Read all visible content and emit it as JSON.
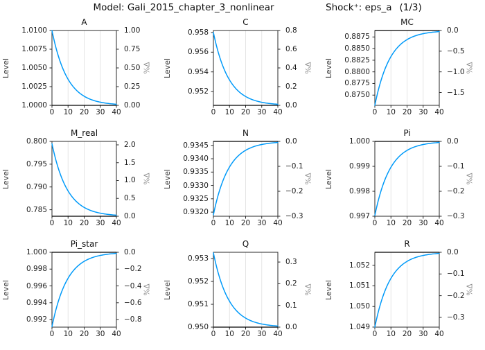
{
  "header": {
    "model_label": "Model: Gali_2015_chapter_3_nonlinear",
    "shock_label": "Shock⁺: eps_a",
    "shock_count": "(1/3)"
  },
  "axis": {
    "level_label": "Level",
    "pct_label": "%Δ"
  },
  "style": {
    "line_color": "#009af9",
    "frame_color": "#2a2a2a",
    "grid_color": "#e4e4e4",
    "ss_line_color": "#000000"
  },
  "chart_data": [
    {
      "type": "line",
      "title": "A",
      "xlabel": "",
      "ylabel_left": "Level",
      "ylabel_right": "%Δ",
      "steady_state": 1.0,
      "start_level": 1.01,
      "decay": 0.9,
      "x_range": [
        0,
        40
      ],
      "grid_x": [
        10,
        20,
        30
      ],
      "pct_range": [
        0,
        1.0
      ],
      "x_ticks": [
        {
          "label": "0",
          "value": 0
        },
        {
          "label": "10",
          "value": 10
        },
        {
          "label": "20",
          "value": 20
        },
        {
          "label": "30",
          "value": 30
        },
        {
          "label": "40",
          "value": 40
        }
      ],
      "left_ticks": [
        {
          "label": "1.0000",
          "value": 1.0
        },
        {
          "label": "1.0025",
          "value": 1.0025
        },
        {
          "label": "1.0050",
          "value": 1.005
        },
        {
          "label": "1.0075",
          "value": 1.0075
        },
        {
          "label": "1.0100",
          "value": 1.01
        }
      ],
      "right_ticks": [
        {
          "label": "0.00",
          "value": 0
        },
        {
          "label": "0.25",
          "value": 0.25
        },
        {
          "label": "0.50",
          "value": 0.5
        },
        {
          "label": "0.75",
          "value": 0.75
        },
        {
          "label": "1.00",
          "value": 1.0
        }
      ]
    },
    {
      "type": "line",
      "title": "C",
      "xlabel": "",
      "ylabel_left": "Level",
      "ylabel_right": "%Δ",
      "steady_state": 0.9506,
      "start_level": 0.958,
      "decay": 0.9,
      "x_range": [
        0,
        40
      ],
      "grid_x": [
        10,
        20,
        30
      ],
      "pct_range": [
        0,
        0.8
      ],
      "x_ticks": [
        {
          "label": "0",
          "value": 0
        },
        {
          "label": "10",
          "value": 10
        },
        {
          "label": "20",
          "value": 20
        },
        {
          "label": "30",
          "value": 30
        },
        {
          "label": "40",
          "value": 40
        }
      ],
      "left_ticks": [
        {
          "label": "0.952",
          "value": 0.952
        },
        {
          "label": "0.954",
          "value": 0.954
        },
        {
          "label": "0.956",
          "value": 0.956
        },
        {
          "label": "0.958",
          "value": 0.958
        }
      ],
      "right_ticks": [
        {
          "label": "0.0",
          "value": 0
        },
        {
          "label": "0.2",
          "value": 0.2
        },
        {
          "label": "0.4",
          "value": 0.4
        },
        {
          "label": "0.6",
          "value": 0.6
        },
        {
          "label": "0.8",
          "value": 0.8
        }
      ]
    },
    {
      "type": "line",
      "title": "MC",
      "xlabel": "",
      "ylabel_left": "Level",
      "ylabel_right": "%Δ",
      "steady_state": 0.88889,
      "start_level": 0.8728,
      "decay": 0.9,
      "x_range": [
        0,
        40
      ],
      "grid_x": [
        10,
        20,
        30
      ],
      "pct_range": [
        -1.81,
        0
      ],
      "x_ticks": [
        {
          "label": "0",
          "value": 0
        },
        {
          "label": "10",
          "value": 10
        },
        {
          "label": "20",
          "value": 20
        },
        {
          "label": "30",
          "value": 30
        },
        {
          "label": "40",
          "value": 40
        }
      ],
      "left_ticks": [
        {
          "label": "0.8750",
          "value": 0.875
        },
        {
          "label": "0.8775",
          "value": 0.8775
        },
        {
          "label": "0.8800",
          "value": 0.88
        },
        {
          "label": "0.8825",
          "value": 0.8825
        },
        {
          "label": "0.8850",
          "value": 0.885
        },
        {
          "label": "0.8875",
          "value": 0.8875
        }
      ],
      "right_ticks": [
        {
          "label": "0.0",
          "value": 0
        },
        {
          "label": "−0.5",
          "value": -0.5
        },
        {
          "label": "−1.0",
          "value": -1.0
        },
        {
          "label": "−1.5",
          "value": -1.5
        }
      ]
    },
    {
      "type": "line",
      "title": "M_real",
      "xlabel": "",
      "ylabel_left": "Level",
      "ylabel_right": "%Δ",
      "steady_state": 0.78357,
      "start_level": 0.7995,
      "decay": 0.9,
      "x_range": [
        0,
        40
      ],
      "grid_x": [
        10,
        20,
        30
      ],
      "pct_range": [
        0,
        2.097
      ],
      "x_ticks": [
        {
          "label": "0",
          "value": 0
        },
        {
          "label": "10",
          "value": 10
        },
        {
          "label": "20",
          "value": 20
        },
        {
          "label": "30",
          "value": 30
        },
        {
          "label": "40",
          "value": 40
        }
      ],
      "left_ticks": [
        {
          "label": "0.785",
          "value": 0.785
        },
        {
          "label": "0.790",
          "value": 0.79
        },
        {
          "label": "0.795",
          "value": 0.795
        },
        {
          "label": "0.800",
          "value": 0.8
        }
      ],
      "right_ticks": [
        {
          "label": "0.0",
          "value": 0
        },
        {
          "label": "0.5",
          "value": 0.5
        },
        {
          "label": "1.0",
          "value": 1.0
        },
        {
          "label": "1.5",
          "value": 1.5
        },
        {
          "label": "2.0",
          "value": 2.0
        }
      ]
    },
    {
      "type": "line",
      "title": "N",
      "xlabel": "",
      "ylabel_left": "Level",
      "ylabel_right": "%Δ",
      "steady_state": 0.93465,
      "start_level": 0.9319,
      "decay": 0.9,
      "x_range": [
        0,
        40
      ],
      "grid_x": [
        10,
        20,
        30
      ],
      "pct_range": [
        -0.3,
        0
      ],
      "x_ticks": [
        {
          "label": "0",
          "value": 0
        },
        {
          "label": "10",
          "value": 10
        },
        {
          "label": "20",
          "value": 20
        },
        {
          "label": "30",
          "value": 30
        },
        {
          "label": "40",
          "value": 40
        }
      ],
      "left_ticks": [
        {
          "label": "0.9320",
          "value": 0.932
        },
        {
          "label": "0.9325",
          "value": 0.9325
        },
        {
          "label": "0.9330",
          "value": 0.933
        },
        {
          "label": "0.9335",
          "value": 0.9335
        },
        {
          "label": "0.9340",
          "value": 0.934
        },
        {
          "label": "0.9345",
          "value": 0.9345
        }
      ],
      "right_ticks": [
        {
          "label": "0.0",
          "value": 0
        },
        {
          "label": "−0.1",
          "value": -0.1
        },
        {
          "label": "−0.2",
          "value": -0.2
        },
        {
          "label": "−0.3",
          "value": -0.3
        }
      ]
    },
    {
      "type": "line",
      "title": "Pi",
      "xlabel": "",
      "ylabel_left": "Level",
      "ylabel_right": "%Δ",
      "steady_state": 1.0,
      "start_level": 0.99703,
      "decay": 0.9,
      "x_range": [
        0,
        40
      ],
      "grid_x": [
        10,
        20,
        30
      ],
      "pct_range": [
        -0.3,
        0
      ],
      "x_ticks": [
        {
          "label": "0",
          "value": 0
        },
        {
          "label": "10",
          "value": 10
        },
        {
          "label": "20",
          "value": 20
        },
        {
          "label": "30",
          "value": 30
        },
        {
          "label": "40",
          "value": 40
        }
      ],
      "left_ticks": [
        {
          "label": "0.997",
          "value": 0.997
        },
        {
          "label": "0.998",
          "value": 0.998
        },
        {
          "label": "0.999",
          "value": 0.999
        },
        {
          "label": "1.000",
          "value": 1.0
        }
      ],
      "right_ticks": [
        {
          "label": "0.0",
          "value": 0
        },
        {
          "label": "−0.1",
          "value": -0.1
        },
        {
          "label": "−0.2",
          "value": -0.2
        },
        {
          "label": "−0.3",
          "value": -0.3
        }
      ]
    },
    {
      "type": "line",
      "title": "Pi_star",
      "xlabel": "",
      "ylabel_left": "Level",
      "ylabel_right": "%Δ",
      "steady_state": 1.0,
      "start_level": 0.99115,
      "decay": 0.9,
      "x_range": [
        0,
        40
      ],
      "grid_x": [
        10,
        20,
        30
      ],
      "pct_range": [
        -0.89,
        0
      ],
      "x_ticks": [
        {
          "label": "0",
          "value": 0
        },
        {
          "label": "10",
          "value": 10
        },
        {
          "label": "20",
          "value": 20
        },
        {
          "label": "30",
          "value": 30
        },
        {
          "label": "40",
          "value": 40
        }
      ],
      "left_ticks": [
        {
          "label": "0.992",
          "value": 0.992
        },
        {
          "label": "0.994",
          "value": 0.994
        },
        {
          "label": "0.996",
          "value": 0.996
        },
        {
          "label": "0.998",
          "value": 0.998
        },
        {
          "label": "1.000",
          "value": 1.0
        }
      ],
      "right_ticks": [
        {
          "label": "0.0",
          "value": 0
        },
        {
          "label": "−0.2",
          "value": -0.2
        },
        {
          "label": "−0.4",
          "value": -0.4
        },
        {
          "label": "−0.6",
          "value": -0.6
        },
        {
          "label": "−0.8",
          "value": -0.8
        }
      ]
    },
    {
      "type": "line",
      "title": "Q",
      "xlabel": "",
      "ylabel_left": "Level",
      "ylabel_right": "%Δ",
      "steady_state": 0.95,
      "start_level": 0.95325,
      "decay": 0.9,
      "x_range": [
        0,
        40
      ],
      "grid_x": [
        10,
        20,
        30
      ],
      "pct_range": [
        0,
        0.345
      ],
      "x_ticks": [
        {
          "label": "0",
          "value": 0
        },
        {
          "label": "10",
          "value": 10
        },
        {
          "label": "20",
          "value": 20
        },
        {
          "label": "30",
          "value": 30
        },
        {
          "label": "40",
          "value": 40
        }
      ],
      "left_ticks": [
        {
          "label": "0.950",
          "value": 0.95
        },
        {
          "label": "0.951",
          "value": 0.951
        },
        {
          "label": "0.952",
          "value": 0.952
        },
        {
          "label": "0.953",
          "value": 0.953
        }
      ],
      "right_ticks": [
        {
          "label": "0.0",
          "value": 0
        },
        {
          "label": "0.1",
          "value": 0.1
        },
        {
          "label": "0.2",
          "value": 0.2
        },
        {
          "label": "0.3",
          "value": 0.3
        }
      ]
    },
    {
      "type": "line",
      "title": "R",
      "xlabel": "",
      "ylabel_left": "Level",
      "ylabel_right": "%Δ",
      "steady_state": 1.05263,
      "start_level": 1.049,
      "decay": 0.9,
      "x_range": [
        0,
        40
      ],
      "grid_x": [
        10,
        20,
        30
      ],
      "pct_range": [
        -0.345,
        0
      ],
      "x_ticks": [
        {
          "label": "0",
          "value": 0
        },
        {
          "label": "10",
          "value": 10
        },
        {
          "label": "20",
          "value": 20
        },
        {
          "label": "30",
          "value": 30
        },
        {
          "label": "40",
          "value": 40
        }
      ],
      "left_ticks": [
        {
          "label": "1.049",
          "value": 1.049
        },
        {
          "label": "1.050",
          "value": 1.05
        },
        {
          "label": "1.051",
          "value": 1.051
        },
        {
          "label": "1.052",
          "value": 1.052
        }
      ],
      "right_ticks": [
        {
          "label": "0.0",
          "value": 0
        },
        {
          "label": "−0.1",
          "value": -0.1
        },
        {
          "label": "−0.2",
          "value": -0.2
        },
        {
          "label": "−0.3",
          "value": -0.3
        }
      ]
    }
  ]
}
